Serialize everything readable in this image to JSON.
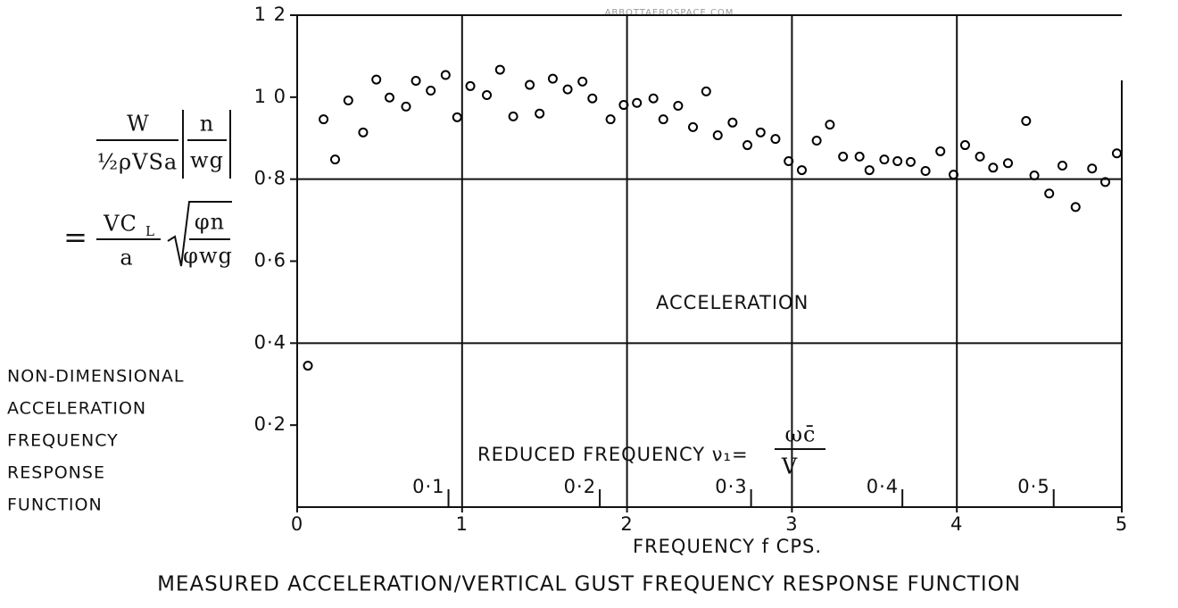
{
  "chart_data": {
    "type": "scatter",
    "title": "MEASURED ACCELERATION/VERTICAL GUST FREQUENCY RESPONSE FUNCTION",
    "watermark": "ABBOTTAEROSPACE.COM",
    "xlabel": "FREQUENCY f CPS.",
    "ylabel": [
      "NON-DIMENSIONAL",
      "ACCELERATION",
      "FREQUENCY",
      "RESPONSE",
      "FUNCTION"
    ],
    "annotation": "ACCELERATION",
    "formula": {
      "lhs_numerator": "W",
      "lhs_denominator": "½ρVSa",
      "abs_numerator": "n",
      "abs_denominator": "wg",
      "equals": "=",
      "rhs_numerator": "VC",
      "rhs_numerator_sub": "L",
      "rhs_denominator": "a",
      "root_numerator": "φn",
      "root_denominator": "φwg"
    },
    "x2label": "REDUCED FREQUENCY ν₁=",
    "x2label_numerator": "ωc̄",
    "x2label_denominator": "V",
    "x": [
      0.065,
      0.16,
      0.23,
      0.31,
      0.4,
      0.48,
      0.56,
      0.66,
      0.72,
      0.81,
      0.9,
      0.97,
      1.05,
      1.15,
      1.23,
      1.31,
      1.41,
      1.47,
      1.55,
      1.64,
      1.73,
      1.79,
      1.9,
      1.98,
      2.06,
      2.16,
      2.22,
      2.31,
      2.4,
      2.48,
      2.55,
      2.64,
      2.73,
      2.81,
      2.9,
      2.98,
      3.06,
      3.15,
      3.23,
      3.31,
      3.41,
      3.47,
      3.56,
      3.64,
      3.72,
      3.81,
      3.9,
      3.98,
      4.05,
      4.14,
      4.22,
      4.31,
      4.42,
      4.47,
      4.56,
      4.64,
      4.72,
      4.82,
      4.9,
      4.97
    ],
    "values": [
      0.345,
      0.946,
      0.848,
      0.992,
      0.914,
      1.043,
      0.999,
      0.977,
      1.04,
      1.016,
      1.054,
      0.951,
      1.027,
      1.005,
      1.067,
      0.953,
      1.03,
      0.96,
      1.045,
      1.019,
      1.038,
      0.997,
      0.946,
      0.981,
      0.986,
      0.997,
      0.946,
      0.979,
      0.927,
      1.014,
      0.907,
      0.938,
      0.883,
      0.914,
      0.898,
      0.844,
      0.822,
      0.894,
      0.933,
      0.855,
      0.855,
      0.822,
      0.848,
      0.844,
      0.842,
      0.82,
      0.868,
      0.811,
      0.883,
      0.855,
      0.828,
      0.839,
      0.942,
      0.809,
      0.765,
      0.833,
      0.732,
      0.826,
      0.793,
      0.863
    ],
    "color": "#000000",
    "xlim": [
      0,
      5
    ],
    "ylim": [
      0,
      1.2
    ],
    "xticks": [
      0,
      1,
      2,
      3,
      4,
      5
    ],
    "yticks": [
      {
        "value": 0.2,
        "label": "0·2"
      },
      {
        "value": 0.4,
        "label": "0·4"
      },
      {
        "value": 0.6,
        "label": "0·6"
      },
      {
        "value": 0.8,
        "label": "0·8"
      },
      {
        "value": 1.0,
        "label": "1 0"
      },
      {
        "value": 1.2,
        "label": "1 2"
      }
    ],
    "x2lim": [
      0,
      0.545
    ],
    "x2ticks": [
      {
        "value": 0.1,
        "label": "0·1"
      },
      {
        "value": 0.2,
        "label": "0·2"
      },
      {
        "value": 0.3,
        "label": "0·3"
      },
      {
        "value": 0.4,
        "label": "0·4"
      },
      {
        "value": 0.5,
        "label": "0·5"
      }
    ],
    "grid_x": [
      1,
      2,
      3,
      4,
      5
    ],
    "grid_y": [
      0.4,
      0.8,
      1.2
    ]
  }
}
